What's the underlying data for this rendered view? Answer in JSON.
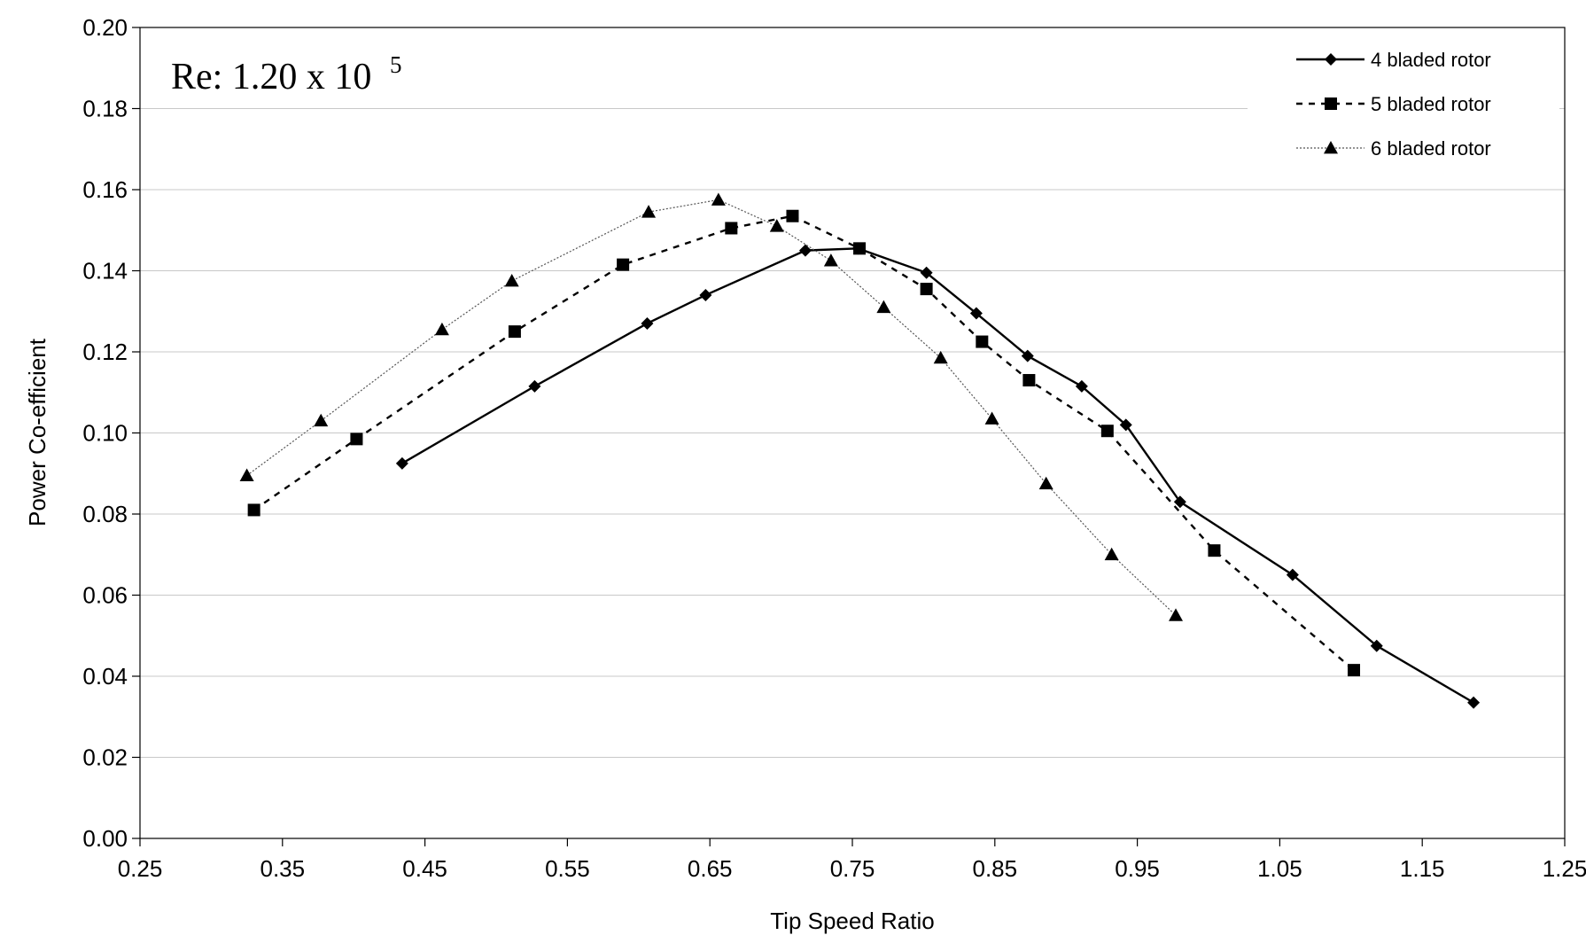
{
  "chart_data": {
    "type": "line",
    "xlabel": "Tip Speed Ratio",
    "ylabel": "Power Co-efficient",
    "xlim": [
      0.25,
      1.25
    ],
    "ylim": [
      0.0,
      0.2
    ],
    "x_ticks": [
      "0.25",
      "0.35",
      "0.45",
      "0.55",
      "0.65",
      "0.75",
      "0.85",
      "0.95",
      "1.05",
      "1.15",
      "1.25"
    ],
    "y_ticks": [
      "0.00",
      "0.02",
      "0.04",
      "0.06",
      "0.08",
      "0.10",
      "0.12",
      "0.14",
      "0.16",
      "0.18",
      "0.20"
    ],
    "grid": "horizontal",
    "legend_position": "top-right",
    "annotation": {
      "base": "Re: 1.20 x 10",
      "exponent": "5"
    },
    "series": [
      {
        "name": "4 bladed rotor",
        "marker": "diamond",
        "line_style": "solid",
        "x": [
          0.434,
          0.527,
          0.606,
          0.647,
          0.717,
          0.754,
          0.802,
          0.837,
          0.873,
          0.911,
          0.942,
          0.98,
          1.059,
          1.118,
          1.186
        ],
        "y": [
          0.0925,
          0.1115,
          0.127,
          0.134,
          0.145,
          0.1455,
          0.1395,
          0.1295,
          0.119,
          0.1115,
          0.102,
          0.083,
          0.065,
          0.0475,
          0.0335
        ]
      },
      {
        "name": "5 bladed rotor",
        "marker": "square",
        "line_style": "dashed",
        "x": [
          0.33,
          0.402,
          0.513,
          0.589,
          0.665,
          0.708,
          0.755,
          0.802,
          0.841,
          0.874,
          0.929,
          1.004,
          1.102
        ],
        "y": [
          0.081,
          0.0985,
          0.125,
          0.1415,
          0.1505,
          0.1535,
          0.1455,
          0.1355,
          0.1225,
          0.113,
          0.1005,
          0.071,
          0.0415
        ]
      },
      {
        "name": "6 bladed rotor",
        "marker": "triangle",
        "line_style": "dotted",
        "x": [
          0.325,
          0.377,
          0.462,
          0.511,
          0.607,
          0.656,
          0.697,
          0.735,
          0.772,
          0.812,
          0.848,
          0.886,
          0.932,
          0.977
        ],
        "y": [
          0.0895,
          0.103,
          0.1255,
          0.1375,
          0.1545,
          0.1575,
          0.151,
          0.1425,
          0.131,
          0.1185,
          0.1035,
          0.0875,
          0.07,
          0.055
        ]
      }
    ]
  }
}
